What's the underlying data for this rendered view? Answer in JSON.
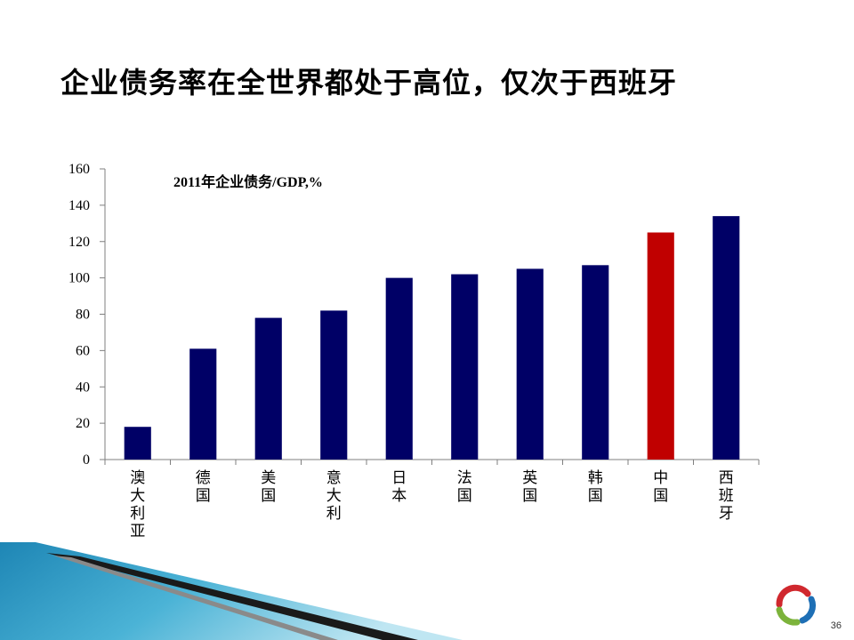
{
  "slide": {
    "title": "企业债务率在全世界都处于高位，仅次于西班牙",
    "page_number": "36"
  },
  "colors": {
    "bar": "#000066",
    "highlight_bar": "#C00000",
    "axis": "#7F7F7F",
    "deco_blue": "#2E9BC4"
  },
  "chart_data": {
    "type": "bar",
    "title": "2011年企业债务/GDP,%",
    "categories": [
      "澳大利亚",
      "德国",
      "美国",
      "意大利",
      "日本",
      "法国",
      "英国",
      "韩国",
      "中国",
      "西班牙"
    ],
    "values": [
      18,
      61,
      78,
      82,
      100,
      102,
      105,
      107,
      125,
      134
    ],
    "highlight_index": 8,
    "ylim": [
      0,
      160
    ],
    "yticks": [
      0,
      20,
      40,
      60,
      80,
      100,
      120,
      140,
      160
    ],
    "xlabel": "",
    "ylabel": "",
    "grid": false,
    "legend": "none"
  }
}
